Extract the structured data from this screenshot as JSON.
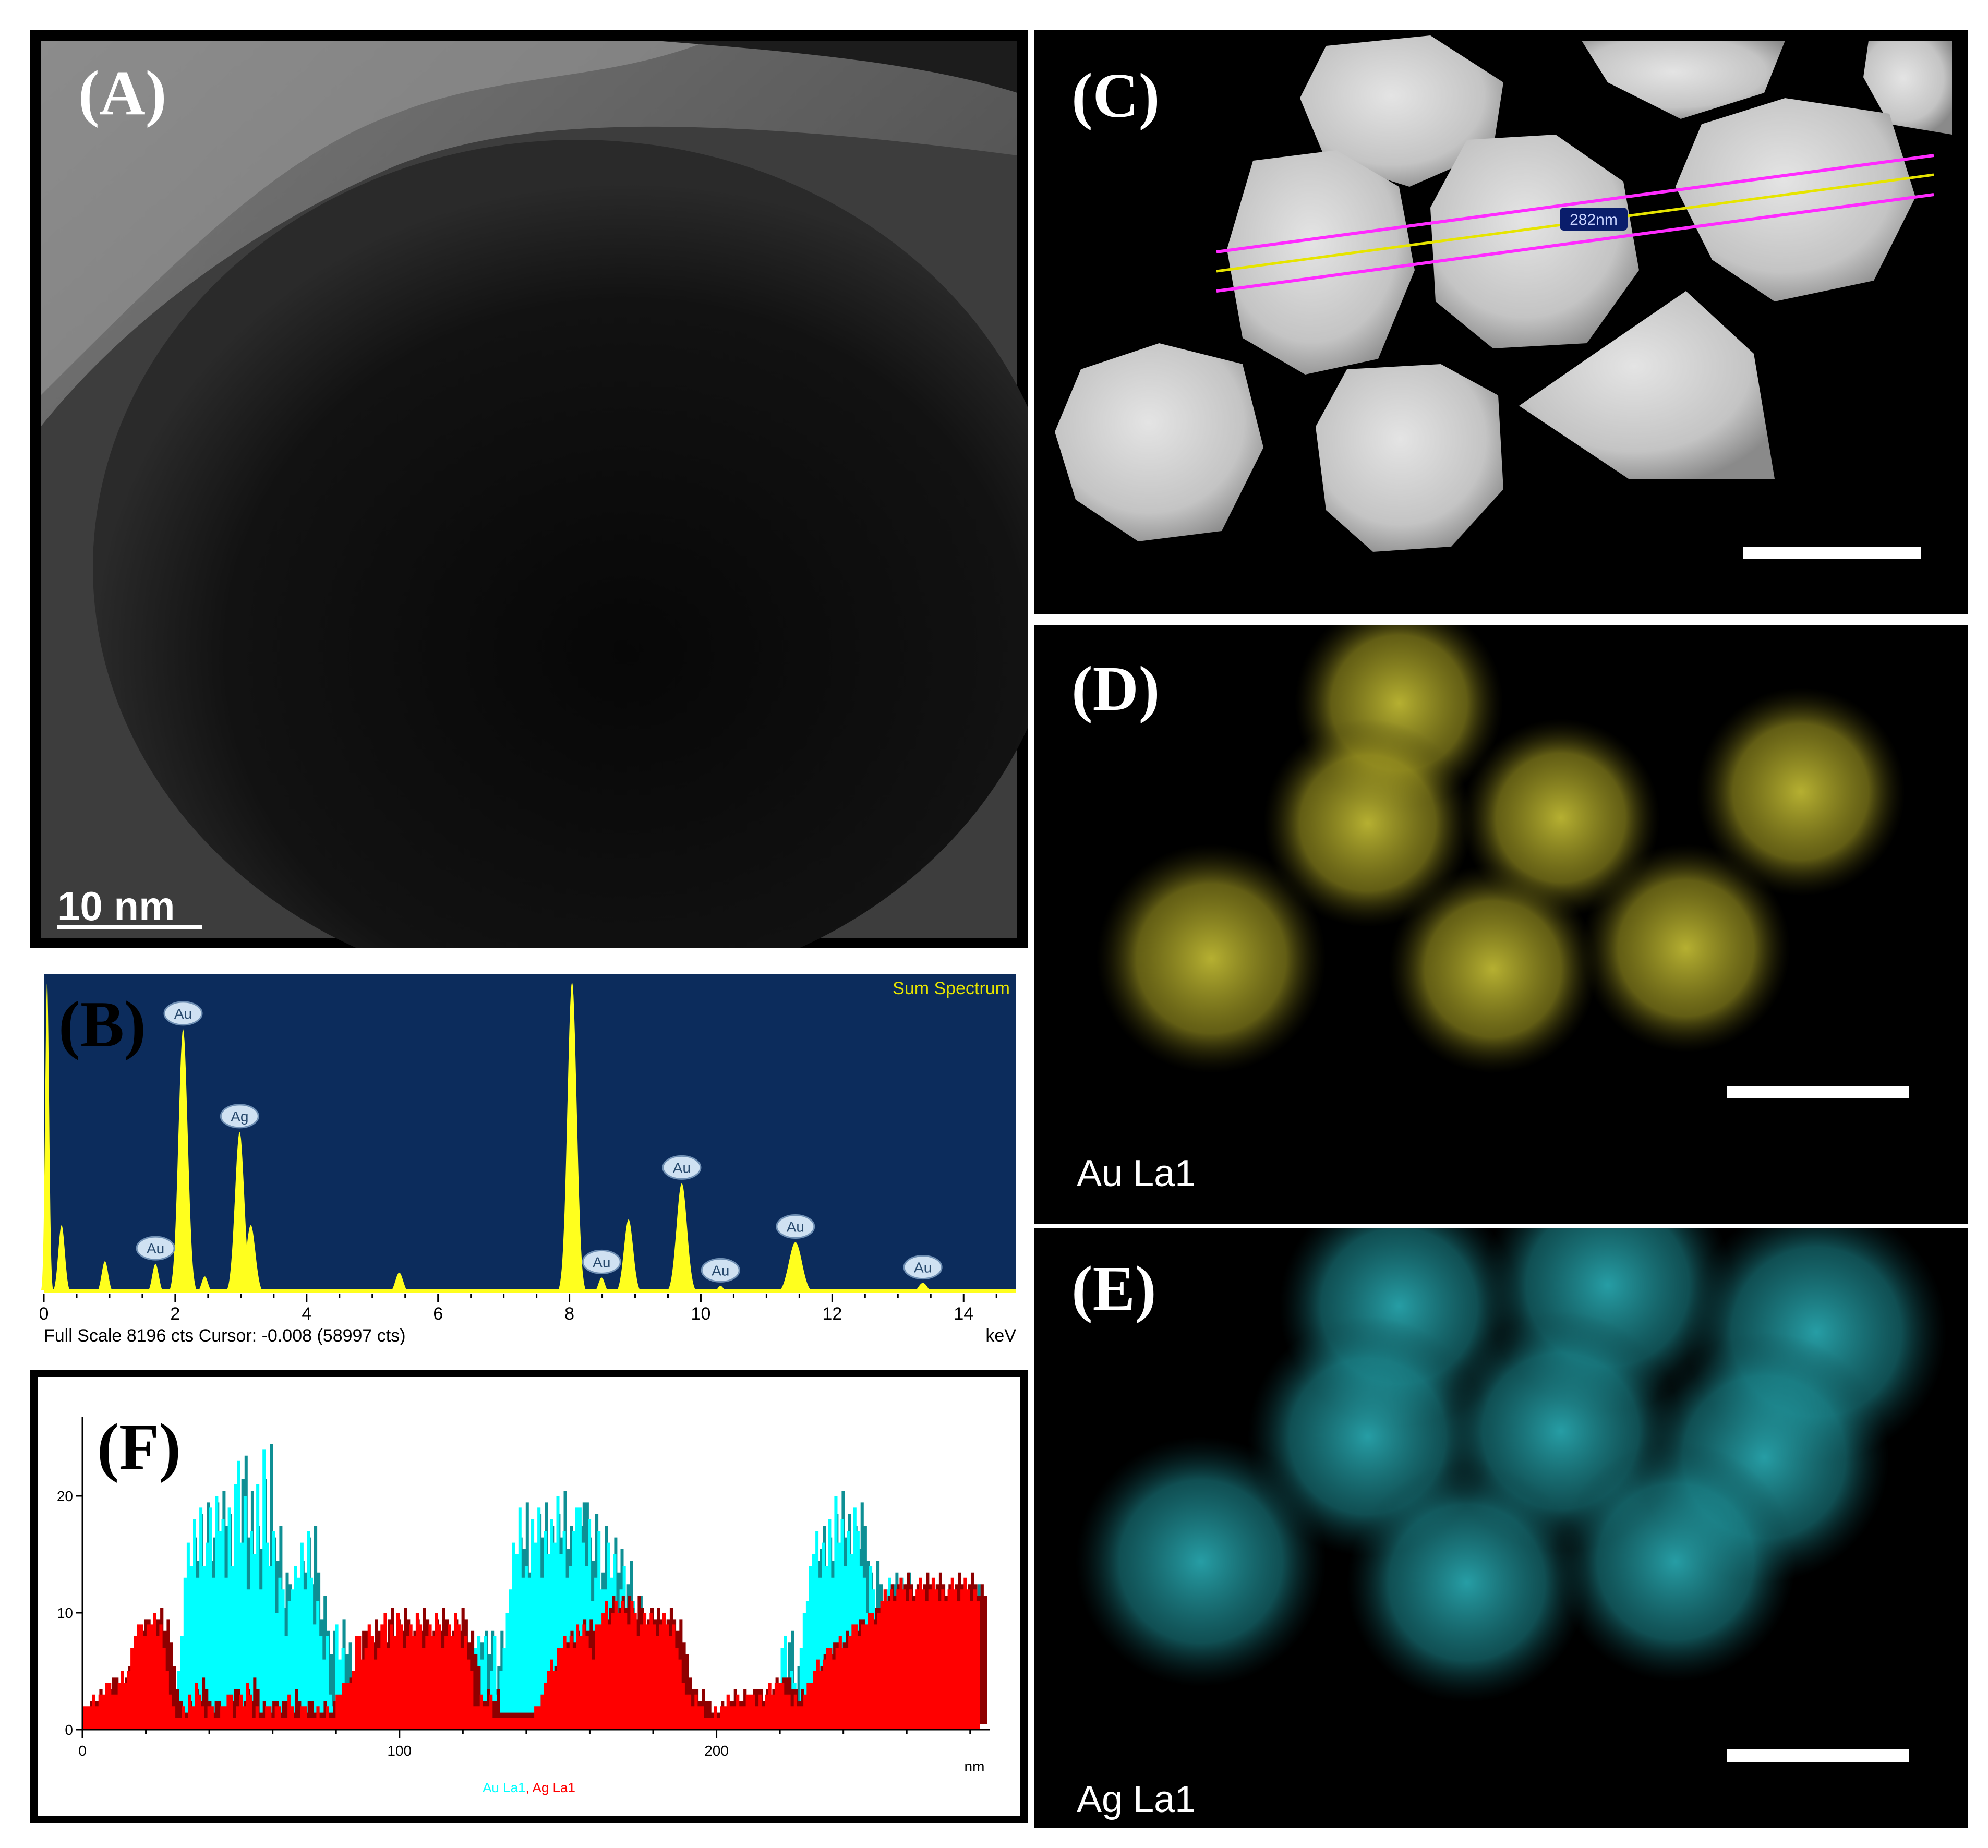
{
  "panels": {
    "a": {
      "letter": "(A)",
      "scale_bar": "10 nm"
    },
    "b": {
      "letter": "(B)"
    },
    "c": {
      "letter": "(C)",
      "line_label": "282nm"
    },
    "d": {
      "letter": "(D)",
      "map_label": "Au La1",
      "map_color": "#d6cf3a"
    },
    "e": {
      "letter": "(E)",
      "map_label": "Ag La1",
      "map_color": "#33d2dc"
    },
    "f": {
      "letter": "(F)"
    }
  },
  "chart_data": [
    {
      "type": "line",
      "panel": "B",
      "title": "Sum Spectrum",
      "xlabel": "keV",
      "footer": "Full Scale 8196 cts Cursor: -0.008  (58997 cts)",
      "xlim": [
        0,
        14.8
      ],
      "ylim": [
        0,
        8196
      ],
      "x_ticks": [
        0,
        2,
        4,
        6,
        8,
        10,
        12,
        14
      ],
      "background_color": "#0c2c5c",
      "line_color": "#ffff1e",
      "peaks": [
        {
          "x": 0.05,
          "y": 8196,
          "width": 0.03
        },
        {
          "x": 0.27,
          "y": 1800,
          "width": 0.05
        },
        {
          "x": 0.93,
          "y": 850,
          "width": 0.05
        },
        {
          "x": 1.7,
          "y": 780,
          "width": 0.05,
          "label": "Au"
        },
        {
          "x": 2.12,
          "y": 6950,
          "width": 0.07,
          "label": "Au"
        },
        {
          "x": 2.45,
          "y": 450,
          "width": 0.05
        },
        {
          "x": 2.98,
          "y": 4250,
          "width": 0.07,
          "label": "Ag"
        },
        {
          "x": 3.15,
          "y": 1800,
          "width": 0.07
        },
        {
          "x": 5.41,
          "y": 550,
          "width": 0.06
        },
        {
          "x": 8.04,
          "y": 8196,
          "width": 0.07
        },
        {
          "x": 8.49,
          "y": 420,
          "width": 0.05,
          "label": "Au"
        },
        {
          "x": 8.9,
          "y": 1950,
          "width": 0.07
        },
        {
          "x": 9.71,
          "y": 2900,
          "width": 0.08,
          "label": "Au"
        },
        {
          "x": 10.3,
          "y": 200,
          "width": 0.05,
          "label": "Au"
        },
        {
          "x": 11.44,
          "y": 1350,
          "width": 0.1,
          "label": "Au"
        },
        {
          "x": 13.38,
          "y": 280,
          "width": 0.07,
          "label": "Au"
        }
      ]
    },
    {
      "type": "area",
      "panel": "F",
      "xlabel": "nm",
      "xlim": [
        0,
        283
      ],
      "ylim": [
        0,
        25
      ],
      "x_ticks": [
        0,
        100,
        200
      ],
      "y_ticks": [
        0,
        10,
        20
      ],
      "legend_placement": "bottom-center",
      "series": [
        {
          "name": "Au La1",
          "color": "#00ffff",
          "values": [
            1,
            1,
            1,
            1,
            1,
            1,
            1,
            1,
            1,
            1,
            1,
            1,
            1,
            1,
            1,
            1,
            1,
            1,
            1,
            1,
            1,
            1,
            1,
            1,
            1,
            1,
            1,
            1,
            1,
            1,
            5,
            8,
            13,
            16,
            14,
            18,
            13,
            19,
            14,
            16,
            19,
            13,
            20,
            17,
            18,
            13,
            19,
            14,
            21,
            23,
            16,
            20,
            12,
            17,
            15,
            21,
            12,
            24,
            16,
            14,
            17,
            10,
            13,
            12,
            8,
            11,
            12,
            14,
            13,
            16,
            12,
            17,
            13,
            9,
            11,
            8,
            6,
            8,
            3,
            2,
            9,
            6,
            7,
            4,
            1,
            1,
            1,
            1,
            1,
            1,
            1,
            1,
            1,
            1,
            1,
            1,
            1,
            1,
            1,
            1,
            1,
            1,
            1,
            1,
            1,
            1,
            1,
            1,
            1,
            1,
            1,
            1,
            1,
            1,
            1,
            1,
            1,
            1,
            1,
            1,
            5,
            6,
            4,
            7,
            7,
            8,
            6,
            8,
            3,
            5,
            8,
            3,
            5,
            7,
            10,
            12,
            16,
            15,
            19,
            13,
            14,
            13,
            18,
            16,
            19,
            13,
            17,
            15,
            18,
            16,
            20,
            15,
            17,
            13,
            14,
            17,
            19,
            19,
            16,
            14,
            18,
            11,
            13,
            17,
            12,
            12,
            16,
            13,
            15,
            9,
            12,
            14,
            7,
            9,
            11,
            6,
            5,
            3,
            1,
            1,
            1,
            1,
            1,
            1,
            1,
            1,
            1,
            1,
            1,
            1,
            1,
            1,
            1,
            1,
            1,
            1,
            1,
            1,
            1,
            1,
            1,
            1,
            1,
            1,
            1,
            1,
            1,
            1,
            1,
            1,
            1,
            1,
            1,
            1,
            1,
            1,
            1,
            1,
            2,
            2,
            4,
            7,
            8,
            3,
            5,
            4,
            2,
            7,
            10,
            11,
            14,
            15,
            17,
            13,
            16,
            14,
            18,
            13,
            20,
            16,
            18,
            14,
            17,
            15,
            19,
            17,
            14,
            13,
            10,
            14,
            12,
            8,
            9,
            11,
            12,
            13,
            10,
            11,
            12,
            13,
            11,
            10,
            8,
            9,
            7,
            7,
            9,
            6,
            11,
            10,
            9,
            8,
            10,
            9,
            8,
            9,
            10,
            11,
            9,
            10,
            9,
            12,
            9,
            10
          ]
        },
        {
          "name": "Ag La1",
          "color": "#ff0000",
          "values": [
            2,
            2,
            2,
            3,
            2,
            3,
            3,
            4,
            4,
            3,
            3,
            4,
            5,
            4,
            5,
            7,
            8,
            9,
            9,
            8,
            9,
            9,
            10,
            8,
            9,
            7,
            5,
            3,
            2,
            1,
            1,
            2,
            1,
            3,
            2,
            4,
            3,
            2,
            1,
            2,
            2,
            1,
            1,
            2,
            2,
            3,
            3,
            1,
            2,
            3,
            2,
            4,
            3,
            1,
            2,
            1,
            1,
            2,
            2,
            1,
            2,
            2,
            1,
            1,
            3,
            2,
            1,
            1,
            2,
            2,
            1,
            1,
            1,
            2,
            1,
            1,
            2,
            1,
            1,
            3,
            3,
            4,
            4,
            4,
            5,
            8,
            8,
            6,
            7,
            9,
            8,
            6,
            7,
            9,
            10,
            7,
            9,
            8,
            10,
            9,
            7,
            8,
            9,
            8,
            10,
            9,
            7,
            8,
            9,
            8,
            10,
            9,
            7,
            8,
            9,
            8,
            10,
            9,
            7,
            8,
            6,
            5,
            2,
            2,
            3,
            2,
            2,
            3,
            1,
            1,
            1,
            1,
            1,
            1,
            1,
            1,
            1,
            1,
            1,
            1,
            1,
            2,
            2,
            3,
            4,
            5,
            6,
            5,
            7,
            7,
            8,
            7,
            8,
            7,
            9,
            8,
            9,
            8,
            7,
            6,
            9,
            9,
            10,
            11,
            9,
            10,
            11,
            10,
            11,
            10,
            9,
            11,
            10,
            8,
            9,
            10,
            9,
            10,
            9,
            8,
            9,
            10,
            9,
            8,
            9,
            7,
            6,
            4,
            3,
            3,
            2,
            3,
            2,
            2,
            1,
            1,
            1,
            2,
            1,
            2,
            2,
            3,
            2,
            2,
            3,
            2,
            2,
            3,
            3,
            3,
            2,
            3,
            2,
            3,
            4,
            3,
            4,
            4,
            4,
            3,
            3,
            2,
            3,
            2,
            2,
            3,
            4,
            4,
            5,
            6,
            5,
            6,
            7,
            7,
            6,
            7,
            8,
            7,
            7,
            8,
            9,
            9,
            8,
            9,
            9,
            10,
            10,
            9,
            10,
            11,
            12,
            11,
            12,
            11,
            12,
            13,
            12,
            11,
            12,
            11,
            12,
            13,
            12,
            11,
            12,
            13,
            12,
            11,
            12,
            11,
            12,
            13,
            12,
            11,
            12,
            13,
            12,
            11,
            12,
            11
          ]
        }
      ]
    }
  ]
}
